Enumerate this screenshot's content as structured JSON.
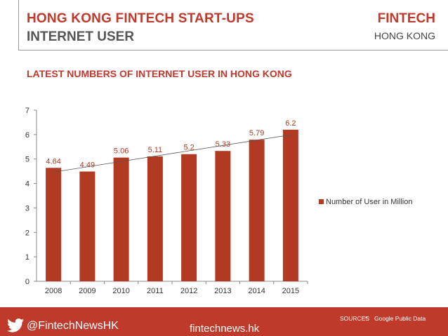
{
  "header": {
    "title_line1": "HONG KONG FINTECH START-UPS",
    "title_line2": "INTERNET USER",
    "brand_line1": "FINTECH",
    "brand_line2": "HONG KONG"
  },
  "colors": {
    "accent": "#c0392b",
    "bar": "#b33a22",
    "footer": "#bf3a2b"
  },
  "chart_data": {
    "type": "bar",
    "title": "LATEST NUMBERS OF INTERNET USER IN HONG KONG",
    "categories": [
      "2008",
      "2009",
      "2010",
      "2011",
      "2012",
      "2013",
      "2014",
      "2015"
    ],
    "series": [
      {
        "name": "Number of User in Million",
        "values": [
          4.64,
          4.49,
          5.06,
          5.11,
          5.2,
          5.33,
          5.79,
          6.2
        ],
        "labels": [
          "4.64",
          "4.49",
          "5.06",
          "5.11",
          "5.2",
          "5.33",
          "5.79",
          "6.2"
        ]
      }
    ],
    "ylim": [
      0,
      7
    ],
    "yticks": [
      "0",
      "1",
      "2",
      "3",
      "4",
      "5",
      "6",
      "7"
    ],
    "trendline": true,
    "grid": false,
    "legend": "right",
    "xlabel": "",
    "ylabel": ""
  },
  "footer": {
    "handle": "@FintechNewsHK",
    "site": "fintechnews.hk",
    "sources_label": "SOURCES",
    "bullet": "•",
    "sources_value": "Google Public Data"
  }
}
